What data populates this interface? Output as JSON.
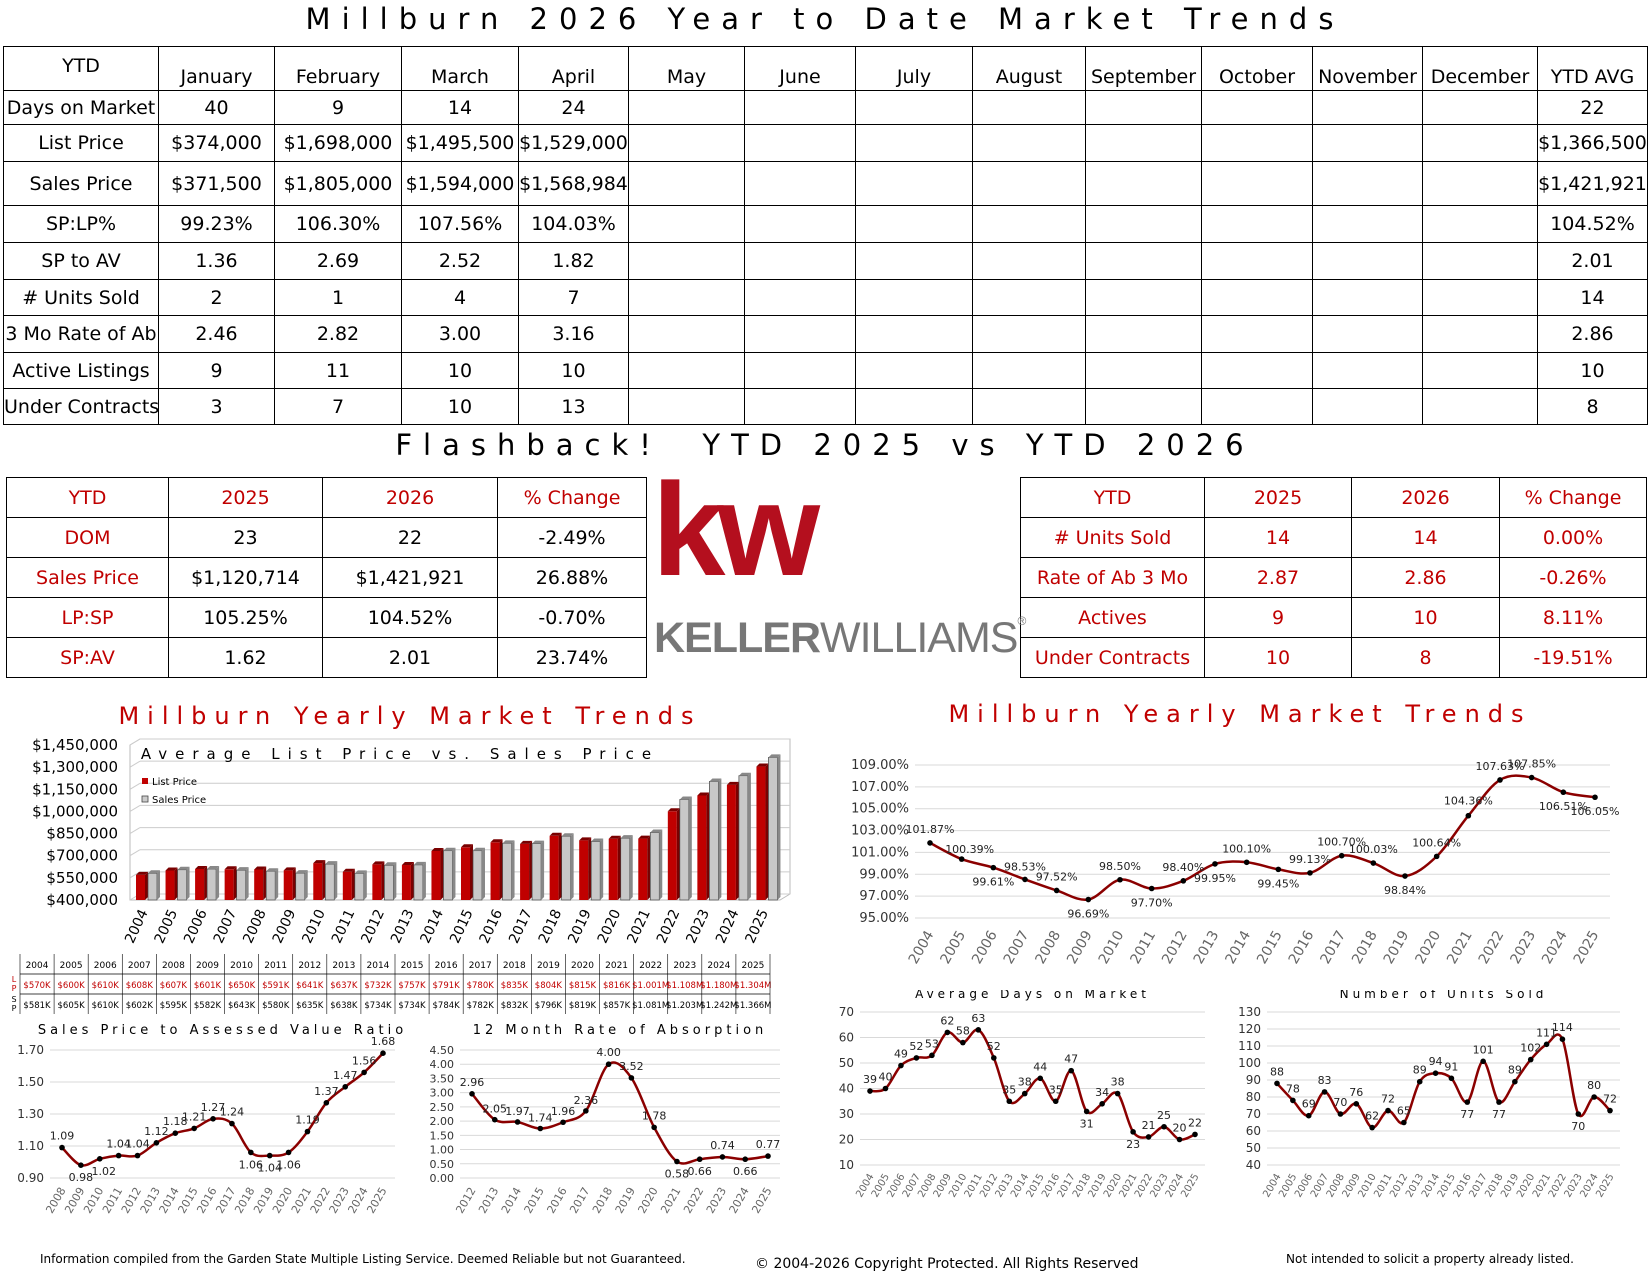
{
  "header": {
    "title": "Millburn 2026 Year to Date Market Trends"
  },
  "main_table": {
    "corner": "YTD",
    "months": [
      "January",
      "February",
      "March",
      "April",
      "May",
      "June",
      "July",
      "August",
      "September",
      "October",
      "November",
      "December",
      "YTD AVG"
    ],
    "rows": [
      {
        "label": "Days on Market",
        "values": [
          "40",
          "9",
          "14",
          "24",
          "",
          "",
          "",
          "",
          "",
          "",
          "",
          "",
          "22"
        ]
      },
      {
        "label": "List Price",
        "values": [
          "$374,000",
          "$1,698,000",
          "$1,495,500",
          "$1,529,000",
          "",
          "",
          "",
          "",
          "",
          "",
          "",
          "",
          "$1,366,500"
        ]
      },
      {
        "label": "Sales Price",
        "values": [
          "$371,500",
          "$1,805,000",
          "$1,594,000",
          "$1,568,984",
          "",
          "",
          "",
          "",
          "",
          "",
          "",
          "",
          "$1,421,921"
        ]
      },
      {
        "label": "SP:LP%",
        "values": [
          "99.23%",
          "106.30%",
          "107.56%",
          "104.03%",
          "",
          "",
          "",
          "",
          "",
          "",
          "",
          "",
          "104.52%"
        ]
      },
      {
        "label": "SP to AV",
        "values": [
          "1.36",
          "2.69",
          "2.52",
          "1.82",
          "",
          "",
          "",
          "",
          "",
          "",
          "",
          "",
          "2.01"
        ]
      },
      {
        "label": "# Units Sold",
        "values": [
          "2",
          "1",
          "4",
          "7",
          "",
          "",
          "",
          "",
          "",
          "",
          "",
          "",
          "14"
        ]
      },
      {
        "label": "3 Mo Rate of Ab",
        "values": [
          "2.46",
          "2.82",
          "3.00",
          "3.16",
          "",
          "",
          "",
          "",
          "",
          "",
          "",
          "",
          "2.86"
        ]
      },
      {
        "label": "Active Listings",
        "values": [
          "9",
          "11",
          "10",
          "10",
          "",
          "",
          "",
          "",
          "",
          "",
          "",
          "",
          "10"
        ]
      },
      {
        "label": "Under Contracts",
        "values": [
          "3",
          "7",
          "10",
          "13",
          "",
          "",
          "",
          "",
          "",
          "",
          "",
          "",
          "8"
        ]
      }
    ]
  },
  "flashback": {
    "title": "Flashback!  YTD 2025 vs YTD 2026"
  },
  "compare_left": {
    "headers": [
      "YTD",
      "2025",
      "2026",
      "% Change"
    ],
    "rows": [
      [
        "DOM",
        "23",
        "22",
        "-2.49%"
      ],
      [
        "Sales Price",
        "$1,120,714",
        "$1,421,921",
        "26.88%"
      ],
      [
        "LP:SP",
        "105.25%",
        "104.52%",
        "-0.70%"
      ],
      [
        "SP:AV",
        "1.62",
        "2.01",
        "23.74%"
      ]
    ]
  },
  "compare_right": {
    "headers": [
      "YTD",
      "2025",
      "2026",
      "% Change"
    ],
    "rows": [
      [
        "# Units Sold",
        "14",
        "14",
        "0.00%"
      ],
      [
        "Rate of Ab 3 Mo",
        "2.87",
        "2.86",
        "-0.26%"
      ],
      [
        "Actives",
        "9",
        "10",
        "8.11%"
      ],
      [
        "Under Contracts",
        "10",
        "8",
        "-19.51%"
      ]
    ]
  },
  "logo": {
    "mark": "kw",
    "wordmark_bold": "KELLER",
    "wordmark_light": "WILLIAMS",
    "registered": "®",
    "colors": {
      "red": "#b40f1e",
      "gray": "#777777"
    }
  },
  "section_titles": {
    "left": "Millburn Yearly Market Trends",
    "right": "Millburn Yearly Market Trends"
  },
  "colors": {
    "accent": "#c00000",
    "line": "#8b0000",
    "gray_bar": "#c8c8c8"
  },
  "chart_data": [
    {
      "id": "avg-list-vs-sales",
      "type": "bar",
      "title": "Average List Price vs. Sales Price",
      "categories": [
        "2004",
        "2005",
        "2006",
        "2007",
        "2008",
        "2009",
        "2010",
        "2011",
        "2012",
        "2013",
        "2014",
        "2015",
        "2016",
        "2017",
        "2018",
        "2019",
        "2020",
        "2021",
        "2022",
        "2023",
        "2024",
        "2025"
      ],
      "series": [
        {
          "name": "List Price",
          "values": [
            570000,
            600000,
            610000,
            608000,
            607000,
            601000,
            650000,
            591000,
            641000,
            637000,
            732000,
            757000,
            791000,
            780000,
            835000,
            804000,
            815000,
            816000,
            1001000,
            1108000,
            1180000,
            1304000
          ]
        },
        {
          "name": "Sales Price",
          "values": [
            581000,
            605000,
            610000,
            602000,
            595000,
            582000,
            643000,
            580000,
            635000,
            638000,
            734000,
            734000,
            784000,
            782000,
            832000,
            796000,
            819000,
            857000,
            1081000,
            1203000,
            1242000,
            1366000
          ]
        }
      ],
      "yticks": [
        "$1,450,000",
        "$1,300,000",
        "$1,150,000",
        "$1,000,000",
        "$850,000",
        "$700,000",
        "$550,000",
        "$400,000"
      ],
      "ylim": [
        400000,
        1450000
      ],
      "legend": "top-left",
      "table": {
        "row_labels": [
          "L\nP",
          "S\nP"
        ],
        "lp_labels": [
          "$570K",
          "$600K",
          "$610K",
          "$608K",
          "$607K",
          "$601K",
          "$650K",
          "$591K",
          "$641K",
          "$637K",
          "$732K",
          "$757K",
          "$791K",
          "$780K",
          "$835K",
          "$804K",
          "$815K",
          "$816K",
          "$1.001M",
          "$1.108M",
          "$1.180M",
          "$1.304M"
        ],
        "sp_labels": [
          "$581K",
          "$605K",
          "$610K",
          "$602K",
          "$595K",
          "$582K",
          "$643K",
          "$580K",
          "$635K",
          "$638K",
          "$734K",
          "$734K",
          "$784K",
          "$782K",
          "$832K",
          "$796K",
          "$819K",
          "$857K",
          "$1.081M",
          "$1.203M",
          "$1.242M",
          "$1.366M"
        ]
      }
    },
    {
      "id": "sp-lp-ratio",
      "type": "line",
      "title": "",
      "x": [
        "2004",
        "2005",
        "2006",
        "2007",
        "2008",
        "2009",
        "2010",
        "2011",
        "2012",
        "2013",
        "2014",
        "2015",
        "2016",
        "2017",
        "2018",
        "2019",
        "2020",
        "2021",
        "2022",
        "2023",
        "2024",
        "2025"
      ],
      "values": [
        101.87,
        100.39,
        99.61,
        98.53,
        97.52,
        96.69,
        98.5,
        97.7,
        98.4,
        99.95,
        100.1,
        99.45,
        99.13,
        100.7,
        100.03,
        98.84,
        100.64,
        104.36,
        107.63,
        107.85,
        106.51,
        106.05
      ],
      "labels": [
        "101.87%",
        "100.39%",
        "99.61%",
        "98.53%",
        "97.52%",
        "96.69%",
        "98.50%",
        "97.70%",
        "98.40%",
        "99.95%",
        "100.10%",
        "99.45%",
        "99.13%",
        "100.70%",
        "100.03%",
        "98.84%",
        "100.64%",
        "104.36%",
        "107.63%",
        "107.85%",
        "106.51%",
        "106.05%"
      ],
      "yticks": [
        "109.00%",
        "107.00%",
        "105.00%",
        "103.00%",
        "101.00%",
        "99.00%",
        "97.00%",
        "95.00%"
      ],
      "ylim": [
        95,
        109
      ]
    },
    {
      "id": "sp-av-ratio",
      "type": "line",
      "title": "Sales Price to Assessed Value Ratio",
      "x": [
        "2008",
        "2009",
        "2010",
        "2011",
        "2012",
        "2013",
        "2014",
        "2015",
        "2016",
        "2017",
        "2018",
        "2019",
        "2020",
        "2021",
        "2022",
        "2023",
        "2024",
        "2025"
      ],
      "values": [
        1.09,
        0.98,
        1.02,
        1.04,
        1.04,
        1.12,
        1.18,
        1.21,
        1.27,
        1.24,
        1.06,
        1.04,
        1.06,
        1.19,
        1.37,
        1.47,
        1.56,
        1.68
      ],
      "labels": [
        "1.09",
        "0.98",
        "1.02",
        "1.04",
        "1.04",
        "1.12",
        "1.18",
        "1.21",
        "1.27",
        "1.24",
        "1.06",
        "1.04",
        "1.06",
        "1.19",
        "1.37",
        "1.47",
        "1.56",
        "1.68"
      ],
      "yticks": [
        "1.70",
        "1.50",
        "1.30",
        "1.10",
        "0.90"
      ],
      "ylim": [
        0.9,
        1.7
      ]
    },
    {
      "id": "absorption",
      "type": "line",
      "title": "12 Month Rate of Absorption",
      "x": [
        "2012",
        "2013",
        "2014",
        "2015",
        "2016",
        "2017",
        "2018",
        "2019",
        "2020",
        "2021",
        "2022",
        "2023",
        "2024",
        "2025"
      ],
      "values": [
        2.96,
        2.05,
        1.97,
        1.74,
        1.96,
        2.36,
        4.0,
        3.52,
        1.78,
        0.58,
        0.66,
        0.74,
        0.66,
        0.77
      ],
      "labels": [
        "2.96",
        "2.05",
        "1.97",
        "1.74",
        "1.96",
        "2.36",
        "4.00",
        "3.52",
        "1.78",
        "0.58",
        "0.66",
        "0.74",
        "0.66",
        "0.77"
      ],
      "yticks": [
        "4.50",
        "4.00",
        "3.50",
        "3.00",
        "2.50",
        "2.00",
        "1.50",
        "1.00",
        "0.50",
        "0.00"
      ],
      "ylim": [
        0,
        4.5
      ]
    },
    {
      "id": "dom",
      "type": "line",
      "title": "Average Days on Market",
      "x": [
        "2004",
        "2005",
        "2006",
        "2007",
        "2008",
        "2009",
        "2010",
        "2011",
        "2012",
        "2013",
        "2014",
        "2015",
        "2016",
        "2017",
        "2018",
        "2019",
        "2020",
        "2021",
        "2022",
        "2023",
        "2024",
        "2025"
      ],
      "values": [
        39,
        40,
        49,
        52,
        53,
        62,
        58,
        63,
        52,
        35,
        38,
        44,
        35,
        47,
        31,
        34,
        38,
        23,
        21,
        25,
        20,
        22
      ],
      "labels": [
        "39",
        "40",
        "49",
        "52",
        "53",
        "62",
        "58",
        "63",
        "52",
        "35",
        "38",
        "44",
        "35",
        "47",
        "31",
        "34",
        "38",
        "23",
        "21",
        "25",
        "20",
        "22"
      ],
      "yticks": [
        "70",
        "60",
        "50",
        "40",
        "30",
        "20",
        "10"
      ],
      "ylim": [
        10,
        70
      ]
    },
    {
      "id": "units-sold",
      "type": "line",
      "title": "Number of Units Sold",
      "x": [
        "2004",
        "2005",
        "2006",
        "2007",
        "2008",
        "2009",
        "2010",
        "2011",
        "2012",
        "2013",
        "2014",
        "2015",
        "2016",
        "2017",
        "2018",
        "2019",
        "2020",
        "2021",
        "2022",
        "2023",
        "2024",
        "2025"
      ],
      "values": [
        88,
        78,
        69,
        83,
        70,
        76,
        62,
        72,
        65,
        89,
        94,
        91,
        77,
        101,
        77,
        89,
        102,
        111,
        114,
        70,
        80,
        72
      ],
      "labels": [
        "88",
        "78",
        "69",
        "83",
        "70",
        "76",
        "62",
        "72",
        "65",
        "89",
        "94",
        "91",
        "77",
        "101",
        "77",
        "89",
        "102",
        "111",
        "114",
        "70",
        "80",
        "72"
      ],
      "yticks": [
        "130",
        "120",
        "110",
        "100",
        "90",
        "80",
        "70",
        "60",
        "50",
        "40"
      ],
      "ylim": [
        40,
        130
      ]
    }
  ],
  "footer": {
    "left": "Information compiled from the Garden State Multiple Listing Service.  Deemed Reliable but not Guaranteed.",
    "center": "© 2004-2026 Copyright Protected.  All Rights Reserved",
    "right": "Not intended to solicit a property already listed."
  }
}
